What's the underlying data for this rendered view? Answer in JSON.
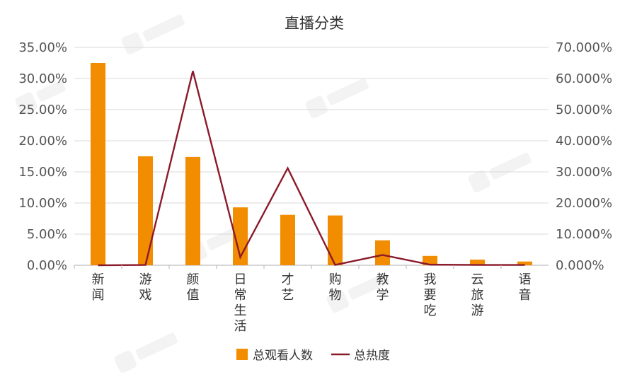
{
  "chart_data": {
    "type": "bar",
    "title": "直播分类",
    "categories": [
      "新闻",
      "游戏",
      "颜值",
      "日常生活",
      "才艺",
      "购物",
      "教学",
      "我要吃",
      "云旅游",
      "语音"
    ],
    "y_left": {
      "min": 0,
      "max": 0.35,
      "step": 0.05,
      "tick_labels": [
        "0.00%",
        "5.00%",
        "10.00%",
        "15.00%",
        "20.00%",
        "25.00%",
        "30.00%",
        "35.00%"
      ]
    },
    "y_right": {
      "min": 0,
      "max": 0.7,
      "step": 0.1,
      "tick_labels": [
        "0.000%",
        "10.000%",
        "20.000%",
        "30.000%",
        "40.000%",
        "50.000%",
        "60.000%",
        "70.000%"
      ]
    },
    "series": [
      {
        "name": "总观看人数",
        "type": "bar",
        "axis": "left",
        "color": "#F28C00",
        "values": [
          0.325,
          0.175,
          0.174,
          0.093,
          0.081,
          0.08,
          0.04,
          0.015,
          0.009,
          0.006
        ]
      },
      {
        "name": "总热度",
        "type": "line",
        "axis": "right",
        "color": "#8B1A2B",
        "values": [
          0.0,
          0.001,
          0.624,
          0.026,
          0.312,
          0.001,
          0.033,
          0.002,
          0.001,
          0.001
        ]
      }
    ],
    "grid": true,
    "legend": "bottom"
  }
}
